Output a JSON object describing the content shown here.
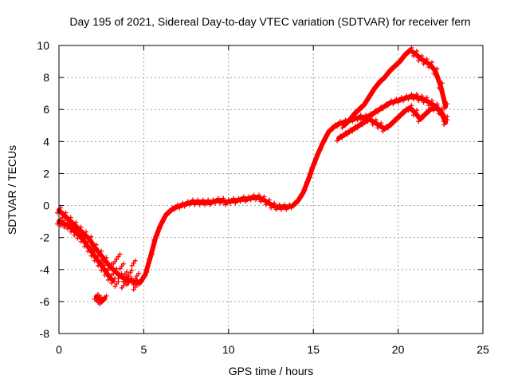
{
  "chart_data": {
    "type": "scatter",
    "title": "Day 195 of 2021, Sidereal Day-to-day VTEC variation (SDTVAR) for receiver fern",
    "xlabel": "GPS time / hours",
    "ylabel": "SDTVAR / TECUs",
    "xlim": [
      0,
      25
    ],
    "ylim": [
      -8,
      10
    ],
    "xticks": [
      0,
      5,
      10,
      15,
      20,
      25
    ],
    "yticks": [
      -8,
      -6,
      -4,
      -2,
      0,
      2,
      4,
      6,
      8,
      10
    ],
    "grid": true,
    "marker": "+",
    "color": "#ff0000",
    "series": [
      {
        "name": "track-main",
        "x": [
          0.0,
          0.3,
          0.6,
          0.9,
          1.2,
          1.5,
          1.8,
          2.1,
          2.4,
          2.7,
          3.0,
          3.3,
          3.6,
          3.9,
          4.2,
          4.5,
          4.8,
          5.1,
          5.4,
          5.7,
          6.0,
          6.3,
          6.6,
          6.9,
          7.2,
          7.5,
          7.8,
          8.1,
          8.4,
          8.7,
          9.0,
          9.3,
          9.6,
          9.9,
          10.2,
          10.5,
          10.8,
          11.1,
          11.4,
          11.7,
          12.0,
          12.3,
          12.6,
          12.9,
          13.2,
          13.5,
          13.8,
          14.1,
          14.4,
          14.7,
          15.0,
          15.3,
          15.6,
          15.9,
          16.2,
          16.5,
          16.8,
          17.1,
          17.4,
          17.7,
          18.0,
          18.3,
          18.6,
          18.9,
          19.2,
          19.5,
          19.8,
          20.1,
          20.4,
          20.7,
          21.0,
          21.3,
          21.6,
          21.9,
          22.2,
          22.5,
          22.8
        ],
        "y": [
          -0.3,
          -0.6,
          -0.9,
          -1.2,
          -1.5,
          -1.8,
          -2.1,
          -2.6,
          -3.0,
          -3.4,
          -3.8,
          -4.1,
          -4.4,
          -4.6,
          -4.7,
          -4.8,
          -4.8,
          -4.3,
          -3.2,
          -2.0,
          -1.2,
          -0.6,
          -0.3,
          -0.1,
          0.0,
          0.1,
          0.2,
          0.2,
          0.2,
          0.2,
          0.2,
          0.3,
          0.3,
          0.2,
          0.3,
          0.3,
          0.4,
          0.4,
          0.5,
          0.5,
          0.4,
          0.2,
          0.0,
          -0.1,
          -0.1,
          -0.1,
          0.0,
          0.3,
          0.8,
          1.6,
          2.5,
          3.3,
          4.0,
          4.6,
          4.9,
          5.1,
          5.2,
          5.3,
          5.4,
          5.5,
          5.5,
          5.6,
          5.8,
          6.0,
          6.2,
          6.4,
          6.5,
          6.6,
          6.7,
          6.8,
          6.8,
          6.7,
          6.6,
          6.4,
          6.2,
          5.9,
          5.4
        ]
      },
      {
        "name": "track-upper",
        "x": [
          16.8,
          17.1,
          17.4,
          17.7,
          18.0,
          18.3,
          18.6,
          18.9,
          19.2,
          19.5,
          19.8,
          20.1,
          20.4,
          20.7,
          21.0,
          21.3,
          21.6,
          21.9,
          22.2,
          22.5,
          22.8
        ],
        "y": [
          5.0,
          5.3,
          5.7,
          6.0,
          6.3,
          6.8,
          7.3,
          7.7,
          8.0,
          8.4,
          8.7,
          9.0,
          9.4,
          9.7,
          9.5,
          9.2,
          9.0,
          8.8,
          8.4,
          7.5,
          6.2
        ]
      },
      {
        "name": "track-lower",
        "x": [
          16.5,
          16.8,
          17.1,
          17.4,
          17.7,
          18.0,
          18.3,
          18.6,
          18.9,
          19.2,
          19.5,
          19.8,
          20.1,
          20.4,
          20.7,
          21.0,
          21.3,
          21.6,
          21.9,
          22.2,
          22.5,
          22.8
        ],
        "y": [
          4.2,
          4.4,
          4.6,
          4.8,
          5.0,
          5.2,
          5.4,
          5.2,
          5.0,
          4.8,
          5.0,
          5.3,
          5.6,
          5.9,
          6.1,
          5.8,
          5.4,
          5.7,
          6.0,
          6.1,
          5.9,
          5.2
        ]
      },
      {
        "name": "track-early",
        "x": [
          0.0,
          0.2,
          0.4,
          0.6,
          0.8,
          1.0,
          1.2,
          1.4,
          1.6,
          1.8,
          2.0,
          2.2,
          2.4,
          2.6,
          2.8,
          3.0,
          3.2
        ],
        "y": [
          -1.0,
          -1.1,
          -1.2,
          -1.3,
          -1.5,
          -1.7,
          -1.9,
          -2.1,
          -2.4,
          -2.7,
          -3.0,
          -3.3,
          -3.6,
          -3.9,
          -4.2,
          -4.5,
          -4.7
        ]
      },
      {
        "name": "cluster-low",
        "x": [
          2.2,
          2.3,
          2.4,
          2.5,
          2.6,
          2.7
        ],
        "y": [
          -5.7,
          -5.8,
          -5.9,
          -6.0,
          -5.9,
          -5.8
        ]
      },
      {
        "name": "cluster-scatter",
        "x": [
          3.3,
          3.5,
          3.7,
          3.9,
          4.0,
          4.2,
          4.4,
          4.6,
          3.4,
          3.8,
          4.1,
          4.5
        ],
        "y": [
          -3.5,
          -3.2,
          -3.8,
          -4.3,
          -4.6,
          -4.2,
          -3.6,
          -4.4,
          -4.9,
          -5.0,
          -4.8,
          -5.1
        ]
      }
    ]
  }
}
